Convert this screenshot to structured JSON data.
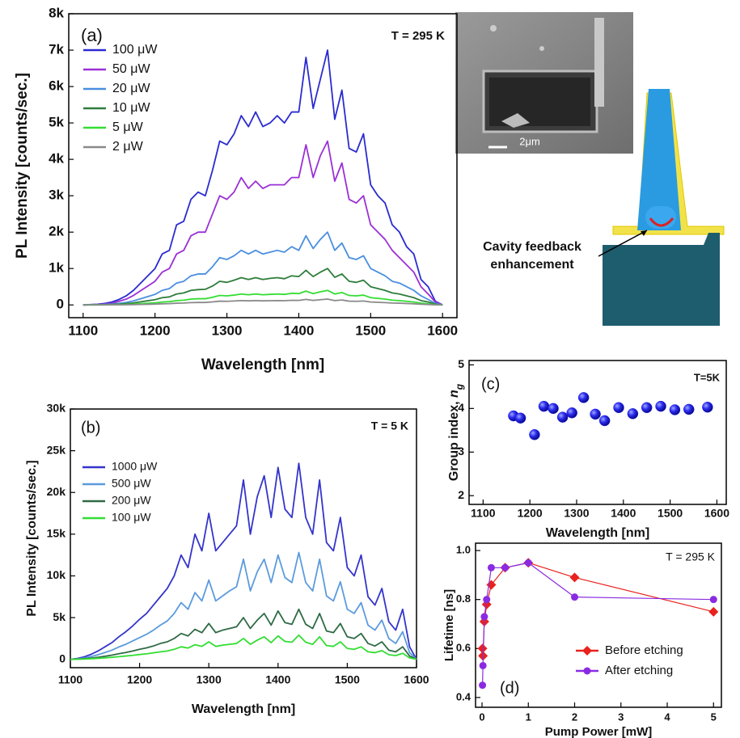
{
  "chart_data": [
    {
      "type": "line",
      "panel_label": "(a)",
      "annotation": "T = 295 K",
      "xlabel": "Wavelength [nm]",
      "ylabel": "PL Intensity [counts/sec.]",
      "xlim": [
        1080,
        1620
      ],
      "xticks": [
        1100,
        1200,
        1300,
        1400,
        1500,
        1600
      ],
      "ylim": [
        -350,
        8000
      ],
      "yticks": [
        0,
        {
          "value": 1000,
          "label": "1k"
        },
        {
          "value": 2000,
          "label": "2k"
        },
        {
          "value": 3000,
          "label": "3k"
        },
        {
          "value": 4000,
          "label": "4k"
        },
        {
          "value": 5000,
          "label": "5k"
        },
        {
          "value": 6000,
          "label": "6k"
        },
        {
          "value": 7000,
          "label": "7k"
        },
        {
          "value": 8000,
          "label": "8k"
        }
      ],
      "legend": "upper left",
      "x": [
        1100,
        1110,
        1120,
        1130,
        1140,
        1150,
        1160,
        1170,
        1180,
        1190,
        1200,
        1210,
        1220,
        1230,
        1240,
        1250,
        1260,
        1270,
        1280,
        1290,
        1300,
        1310,
        1320,
        1330,
        1340,
        1350,
        1360,
        1370,
        1380,
        1390,
        1400,
        1410,
        1420,
        1430,
        1440,
        1450,
        1460,
        1470,
        1480,
        1490,
        1500,
        1510,
        1520,
        1530,
        1540,
        1550,
        1560,
        1570,
        1580,
        1590,
        1600
      ],
      "series": [
        {
          "name": "100 μW",
          "color": "#2b2bd0",
          "values": [
            0,
            10,
            20,
            40,
            80,
            150,
            250,
            400,
            600,
            800,
            1000,
            1400,
            1500,
            2200,
            2300,
            2900,
            3100,
            3000,
            3700,
            4500,
            4400,
            4700,
            5200,
            4900,
            5300,
            4900,
            5000,
            5200,
            5000,
            5300,
            5300,
            6800,
            5400,
            6200,
            7000,
            5100,
            5900,
            4300,
            4200,
            4700,
            3300,
            3000,
            2800,
            2200,
            2000,
            1600,
            1400,
            700,
            500,
            100,
            0
          ]
        },
        {
          "name": "50 μW",
          "color": "#9b30d6",
          "values": [
            0,
            5,
            10,
            25,
            50,
            100,
            160,
            260,
            390,
            520,
            650,
            900,
            1000,
            1400,
            1500,
            1900,
            2000,
            2000,
            2500,
            3000,
            2900,
            3100,
            3500,
            3200,
            3400,
            3200,
            3300,
            3300,
            3300,
            3500,
            3500,
            4400,
            3500,
            4100,
            4500,
            3400,
            3900,
            2900,
            2800,
            3000,
            2200,
            2000,
            1800,
            1500,
            1300,
            1100,
            900,
            500,
            300,
            80,
            0
          ]
        },
        {
          "name": "20 μW",
          "color": "#4a8fe0",
          "values": [
            0,
            3,
            6,
            12,
            25,
            45,
            70,
            110,
            170,
            230,
            290,
            400,
            450,
            600,
            650,
            800,
            850,
            850,
            1050,
            1300,
            1250,
            1350,
            1500,
            1400,
            1500,
            1400,
            1450,
            1500,
            1450,
            1600,
            1500,
            1900,
            1550,
            1800,
            2000,
            1500,
            1700,
            1300,
            1250,
            1350,
            1000,
            900,
            800,
            650,
            600,
            500,
            400,
            250,
            150,
            40,
            0
          ]
        },
        {
          "name": "10 μW",
          "color": "#2e7d3a",
          "values": [
            0,
            2,
            3,
            6,
            12,
            22,
            35,
            55,
            85,
            115,
            145,
            200,
            220,
            300,
            330,
            400,
            420,
            430,
            520,
            650,
            620,
            680,
            750,
            700,
            750,
            700,
            730,
            750,
            720,
            800,
            780,
            950,
            780,
            900,
            1000,
            760,
            850,
            650,
            620,
            680,
            500,
            450,
            400,
            330,
            300,
            250,
            200,
            120,
            80,
            20,
            0
          ]
        },
        {
          "name": "5 μW",
          "color": "#33dd33",
          "values": [
            0,
            1,
            1,
            2,
            5,
            9,
            14,
            22,
            34,
            46,
            58,
            80,
            90,
            120,
            130,
            160,
            170,
            170,
            210,
            260,
            250,
            270,
            300,
            280,
            300,
            280,
            290,
            300,
            290,
            320,
            310,
            380,
            310,
            360,
            400,
            300,
            340,
            260,
            250,
            270,
            200,
            180,
            160,
            130,
            120,
            100,
            80,
            50,
            30,
            8,
            0
          ]
        },
        {
          "name": "2 μW",
          "color": "#8a8a8a",
          "values": [
            0,
            0,
            0,
            1,
            2,
            4,
            6,
            9,
            14,
            18,
            23,
            32,
            36,
            48,
            52,
            64,
            68,
            68,
            84,
            104,
            100,
            108,
            120,
            112,
            120,
            112,
            116,
            120,
            116,
            128,
            124,
            152,
            124,
            144,
            160,
            120,
            136,
            104,
            100,
            108,
            80,
            72,
            64,
            52,
            48,
            40,
            32,
            20,
            12,
            3,
            0
          ]
        }
      ]
    },
    {
      "type": "line",
      "panel_label": "(b)",
      "annotation": "T = 5 K",
      "xlabel": "Wavelength [nm]",
      "ylabel": "PL Intensity [counts/sec.]",
      "xlim": [
        1100,
        1600
      ],
      "xticks": [
        1100,
        1200,
        1300,
        1400,
        1500,
        1600
      ],
      "ylim": [
        -1000,
        30000
      ],
      "yticks": [
        0,
        {
          "value": 5000,
          "label": "5k"
        },
        {
          "value": 10000,
          "label": "10k"
        },
        {
          "value": 15000,
          "label": "15k"
        },
        {
          "value": 20000,
          "label": "20k"
        },
        {
          "value": 25000,
          "label": "25k"
        },
        {
          "value": 30000,
          "label": "30k"
        }
      ],
      "legend": "upper left",
      "x": [
        1100,
        1110,
        1120,
        1130,
        1140,
        1150,
        1160,
        1170,
        1180,
        1190,
        1200,
        1210,
        1220,
        1230,
        1240,
        1250,
        1260,
        1270,
        1280,
        1290,
        1300,
        1310,
        1320,
        1330,
        1340,
        1350,
        1360,
        1370,
        1380,
        1390,
        1400,
        1410,
        1420,
        1430,
        1440,
        1450,
        1460,
        1470,
        1480,
        1490,
        1500,
        1510,
        1520,
        1530,
        1540,
        1550,
        1560,
        1570,
        1580,
        1590,
        1600
      ],
      "series": [
        {
          "name": "1000 μW",
          "color": "#3434cc",
          "values": [
            0,
            100,
            300,
            600,
            1000,
            1500,
            2000,
            2700,
            3300,
            4000,
            4800,
            5500,
            6500,
            7500,
            8500,
            10000,
            12500,
            11000,
            15000,
            13000,
            17500,
            13000,
            14000,
            15000,
            16000,
            21500,
            15000,
            19500,
            22000,
            17000,
            23000,
            18000,
            17000,
            23500,
            17000,
            15000,
            21500,
            14000,
            13000,
            17000,
            11000,
            10000,
            12500,
            7500,
            6500,
            8500,
            4500,
            3500,
            6000,
            1500,
            0
          ]
        },
        {
          "name": "500 μW",
          "color": "#5b9bdd",
          "values": [
            0,
            50,
            160,
            330,
            550,
            820,
            1100,
            1480,
            1800,
            2200,
            2600,
            3000,
            3500,
            4100,
            4600,
            5500,
            6800,
            6000,
            8000,
            7000,
            9500,
            7000,
            7600,
            8200,
            8700,
            12000,
            8200,
            10500,
            12000,
            9200,
            12500,
            9800,
            9200,
            12800,
            9200,
            8200,
            12000,
            7600,
            7000,
            9300,
            6000,
            5500,
            6800,
            4100,
            3500,
            4700,
            2500,
            1900,
            3300,
            800,
            0
          ]
        },
        {
          "name": "200 μW",
          "color": "#2f6b45",
          "values": [
            0,
            25,
            75,
            150,
            250,
            370,
            500,
            670,
            820,
            1000,
            1200,
            1370,
            1600,
            1900,
            2100,
            2500,
            3100,
            2800,
            3600,
            3200,
            4300,
            3200,
            3500,
            3700,
            3900,
            5000,
            3700,
            4700,
            5500,
            4100,
            5800,
            4400,
            4200,
            6000,
            4200,
            3700,
            5500,
            3400,
            3200,
            4300,
            2700,
            2500,
            3100,
            1900,
            1600,
            2100,
            1100,
            900,
            1500,
            400,
            0
          ]
        },
        {
          "name": "100 μW",
          "color": "#33dd33",
          "values": [
            0,
            12,
            36,
            72,
            120,
            180,
            240,
            320,
            400,
            480,
            580,
            660,
            780,
            900,
            1000,
            1200,
            1500,
            1350,
            1750,
            1550,
            2100,
            1550,
            1700,
            1800,
            1900,
            2500,
            1800,
            2300,
            2700,
            2000,
            2800,
            2150,
            2050,
            2900,
            2050,
            1800,
            2700,
            1650,
            1550,
            2100,
            1300,
            1200,
            1500,
            900,
            800,
            1050,
            550,
            450,
            720,
            180,
            0
          ]
        }
      ]
    },
    {
      "type": "scatter",
      "panel_label": "(c)",
      "annotation": "T=5K",
      "xlabel": "Wavelength [nm]",
      "ylabel_parts": [
        "Group index, ",
        "n",
        "g"
      ],
      "xlim": [
        1070,
        1620
      ],
      "xticks": [
        1100,
        1200,
        1300,
        1400,
        1500,
        1600
      ],
      "ylim": [
        1.8,
        5.1
      ],
      "yticks": [
        2,
        3,
        4,
        5
      ],
      "color": "#1a1aee",
      "x": [
        1165,
        1180,
        1210,
        1230,
        1250,
        1270,
        1290,
        1315,
        1340,
        1360,
        1390,
        1420,
        1450,
        1480,
        1510,
        1540,
        1580
      ],
      "values": [
        3.83,
        3.78,
        3.4,
        4.05,
        4.0,
        3.8,
        3.9,
        4.25,
        3.87,
        3.72,
        4.02,
        3.88,
        4.02,
        4.05,
        3.97,
        3.98,
        4.03
      ]
    },
    {
      "type": "line",
      "panel_label": "(d)",
      "annotation": "T = 295 K",
      "xlabel": "Pump Power [mW]",
      "ylabel": "Lifetime [ns]",
      "xlim": [
        -0.14,
        5.17
      ],
      "xticks": [
        0,
        1,
        2,
        3,
        4,
        5
      ],
      "ylim": [
        0.36,
        1.03
      ],
      "yticks": [
        0.4,
        0.6,
        0.8,
        {
          "value": 1,
          "label": "1.0"
        }
      ],
      "legend": "lower right",
      "x": [
        0.01,
        0.02,
        0.05,
        0.1,
        0.2,
        0.5,
        1,
        2,
        5
      ],
      "series": [
        {
          "name": "Before etching",
          "color": "#e8221e",
          "marker": "diamond",
          "values": [
            0.6,
            0.57,
            0.71,
            0.78,
            0.86,
            0.93,
            0.95,
            0.89,
            0.75
          ]
        },
        {
          "name": "After etching",
          "color": "#8a2be2",
          "marker": "circle",
          "values": [
            0.45,
            0.53,
            0.73,
            0.8,
            0.93,
            0.93,
            0.95,
            0.81,
            0.8
          ]
        }
      ]
    }
  ],
  "sem_image": {
    "scale_label": "2μm"
  },
  "schematic": {
    "label_lines": [
      "Cavity feedback",
      "enhancement"
    ]
  }
}
